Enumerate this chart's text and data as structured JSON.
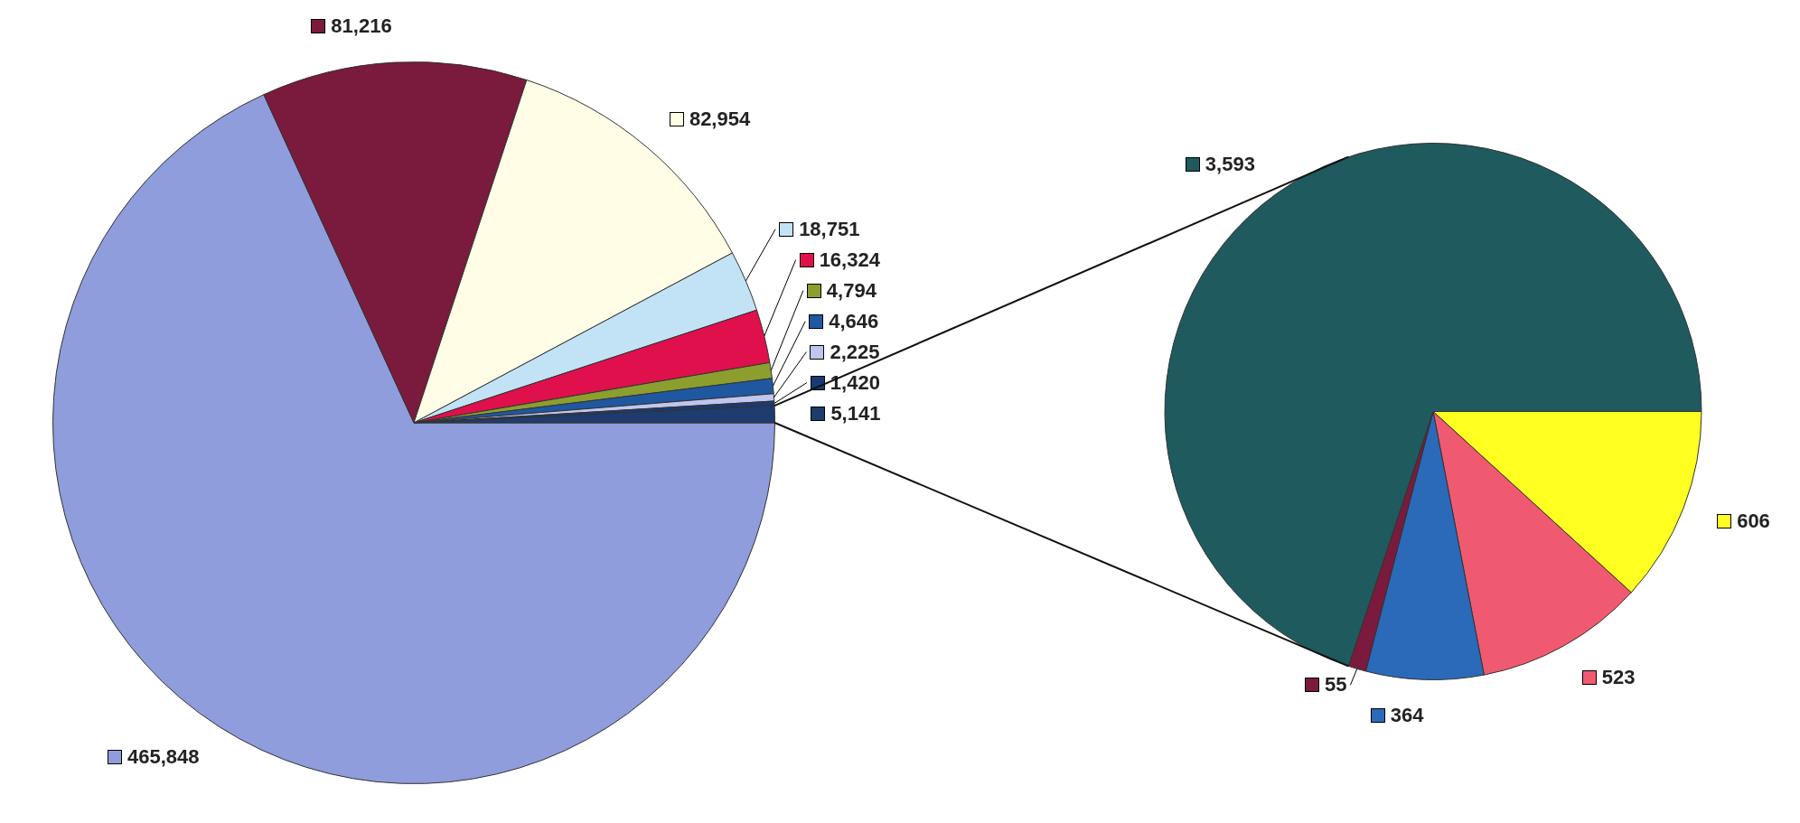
{
  "chart_data": [
    {
      "type": "pie",
      "categories": [
        null,
        null,
        null,
        null,
        null,
        null,
        null,
        null,
        null,
        null
      ],
      "values": [
        465848,
        81216,
        82954,
        18751,
        16324,
        4794,
        4646,
        2225,
        1420,
        5141
      ],
      "colors": [
        "#8f9ddc",
        "#7a1a3c",
        "#fffde6",
        "#c2e2f6",
        "#e0104c",
        "#8c9e2e",
        "#1f58a0",
        "#c0c6ee",
        "#1a3a72",
        "#1e3c6e"
      ],
      "value_labels": [
        "465,848",
        "81,216",
        "82,954",
        "18,751",
        "16,324",
        "4,794",
        "4,646",
        "2,225",
        "1,420",
        "5,141"
      ]
    },
    {
      "type": "pie",
      "categories": [
        null,
        null,
        null,
        null,
        null
      ],
      "values": [
        606,
        523,
        364,
        55,
        3593
      ],
      "colors": [
        "#ffff22",
        "#f05a70",
        "#2a6ab8",
        "#7a1a3c",
        "#1f5a5e"
      ],
      "value_labels": [
        "606",
        "523",
        "364",
        "55",
        "3,593"
      ]
    }
  ]
}
